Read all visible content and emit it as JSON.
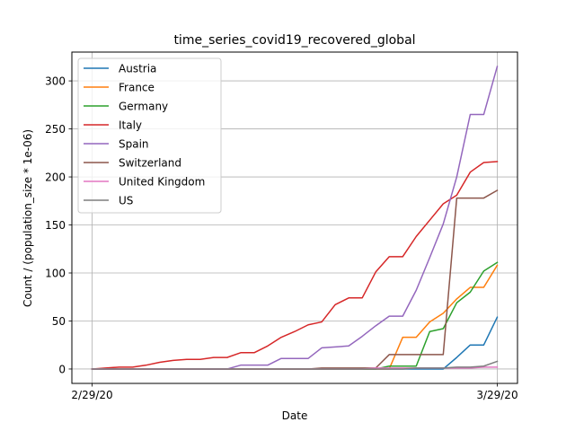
{
  "chart_data": {
    "type": "line",
    "title": "time_series_covid19_recovered_global",
    "xlabel": "Date",
    "ylabel": "Count /  (population_size * 1e-06)",
    "x_start_label": "2/29/20",
    "x_end_label": "3/29/20",
    "xlim": [
      -1.5,
      31.5
    ],
    "ylim": [
      -15,
      330
    ],
    "y_ticks": [
      0,
      50,
      100,
      150,
      200,
      250,
      300
    ],
    "x_ticks": [
      "2/29/20",
      "3/29/20"
    ],
    "grid": true,
    "legend_position": "top-left",
    "series": [
      {
        "name": "Austria",
        "color": "#1f77b4",
        "values": [
          0,
          0,
          0,
          0,
          0,
          0,
          0,
          0,
          0,
          0,
          0,
          0,
          0,
          0,
          0,
          0,
          0,
          0,
          0,
          0,
          0,
          0,
          0,
          0,
          0,
          0,
          0,
          12,
          25,
          25,
          54
        ]
      },
      {
        "name": "France",
        "color": "#ff7f0e",
        "values": [
          0,
          0,
          0,
          0,
          0,
          0,
          0,
          0,
          0,
          0,
          0,
          0,
          0,
          0,
          0,
          0,
          0,
          0,
          0,
          0,
          0,
          0,
          0,
          33,
          33,
          49,
          58,
          73,
          85,
          85,
          108
        ]
      },
      {
        "name": "Germany",
        "color": "#2ca02c",
        "values": [
          0,
          0,
          0,
          0,
          0,
          0,
          0,
          0,
          0,
          0,
          0,
          0,
          0,
          0,
          0,
          0,
          0,
          0,
          0,
          0,
          0,
          0,
          3,
          3,
          3,
          39,
          42,
          69,
          80,
          102,
          111
        ]
      },
      {
        "name": "Italy",
        "color": "#d62728",
        "values": [
          0,
          1,
          2,
          2,
          4,
          7,
          9,
          10,
          10,
          12,
          12,
          17,
          17,
          24,
          33,
          39,
          46,
          49,
          67,
          74,
          74,
          101,
          117,
          117,
          138,
          155,
          172,
          181,
          205,
          215,
          216
        ]
      },
      {
        "name": "Spain",
        "color": "#9467bd",
        "values": [
          0,
          0,
          0,
          0,
          0,
          0,
          0,
          0,
          0,
          0,
          0,
          4,
          4,
          4,
          11,
          11,
          11,
          22,
          23,
          24,
          34,
          45,
          55,
          55,
          82,
          116,
          151,
          200,
          265,
          265,
          315
        ]
      },
      {
        "name": "Switzerland",
        "color": "#8c564b",
        "values": [
          0,
          0,
          0,
          0,
          0,
          0,
          0,
          0,
          0,
          0,
          0,
          0,
          0,
          0,
          0,
          0,
          0,
          1,
          1,
          1,
          1,
          1,
          15,
          15,
          15,
          15,
          15,
          178,
          178,
          178,
          186
        ]
      },
      {
        "name": "United Kingdom",
        "color": "#e377c2",
        "values": [
          0,
          0,
          0,
          0,
          0,
          0,
          0,
          0,
          0,
          0,
          0,
          0,
          0,
          0,
          0,
          0,
          0,
          0,
          0,
          0,
          0,
          1,
          1,
          1,
          1,
          1,
          1,
          1,
          1,
          2,
          2
        ]
      },
      {
        "name": "US",
        "color": "#7f7f7f",
        "values": [
          0,
          0,
          0,
          0,
          0,
          0,
          0,
          0,
          0,
          0,
          0,
          0,
          0,
          0,
          0,
          0,
          0,
          0,
          0,
          0,
          0,
          0,
          0,
          0,
          1,
          1,
          1,
          2,
          2,
          3,
          8
        ]
      }
    ]
  }
}
